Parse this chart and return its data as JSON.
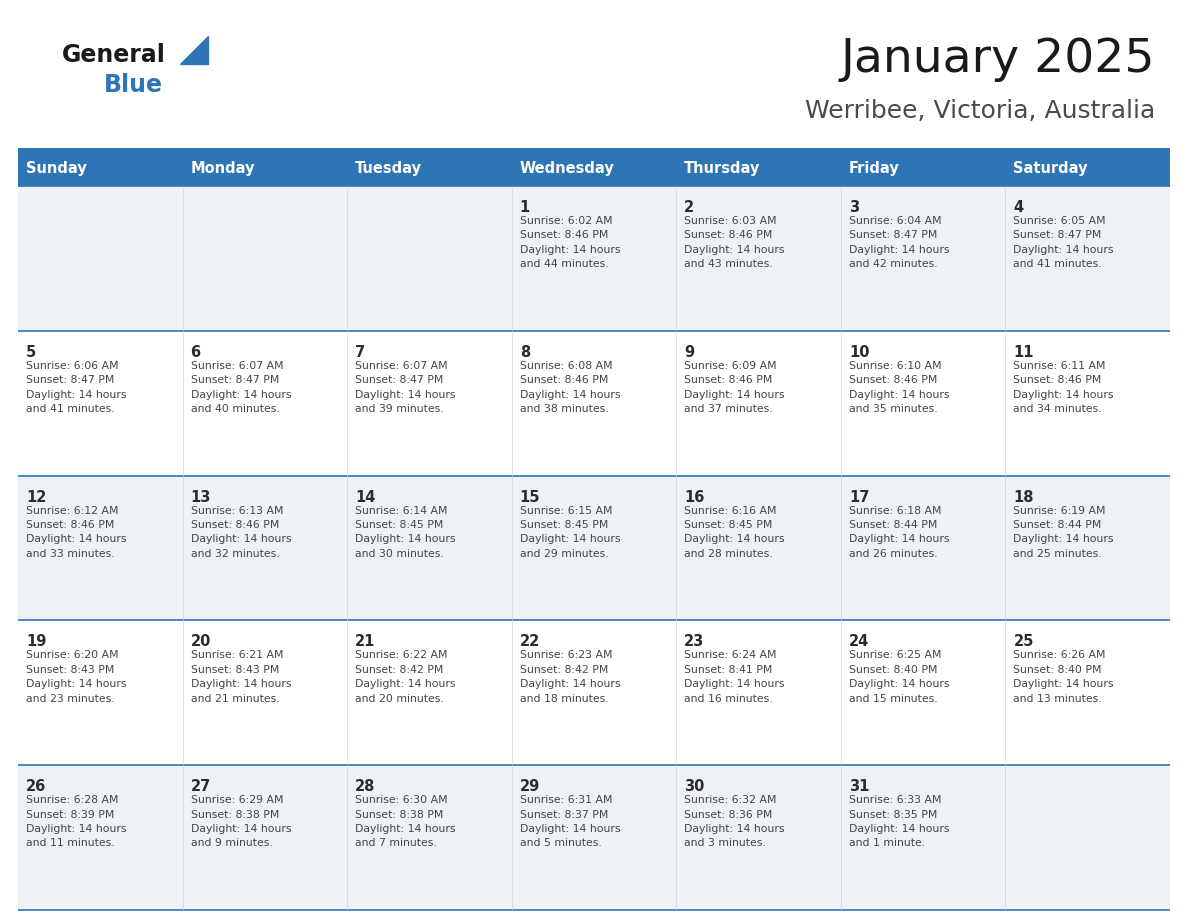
{
  "title": "January 2025",
  "subtitle": "Werribee, Victoria, Australia",
  "header_bg": "#2E75B6",
  "header_text_color": "#FFFFFF",
  "header_font_size": 10.5,
  "day_headers": [
    "Sunday",
    "Monday",
    "Tuesday",
    "Wednesday",
    "Thursday",
    "Friday",
    "Saturday"
  ],
  "title_font_size": 34,
  "subtitle_font_size": 18,
  "cell_bg_light": "#EEF2F7",
  "cell_bg_white": "#FFFFFF",
  "row_line_color": "#2E75B6",
  "text_color": "#2B2B2B",
  "info_color": "#444444",
  "logo_general_color": "#1A1A1A",
  "logo_blue_color": "#2E75B6",
  "weeks": [
    [
      {
        "day": null,
        "info": null
      },
      {
        "day": null,
        "info": null
      },
      {
        "day": null,
        "info": null
      },
      {
        "day": "1",
        "info": "Sunrise: 6:02 AM\nSunset: 8:46 PM\nDaylight: 14 hours\nand 44 minutes."
      },
      {
        "day": "2",
        "info": "Sunrise: 6:03 AM\nSunset: 8:46 PM\nDaylight: 14 hours\nand 43 minutes."
      },
      {
        "day": "3",
        "info": "Sunrise: 6:04 AM\nSunset: 8:47 PM\nDaylight: 14 hours\nand 42 minutes."
      },
      {
        "day": "4",
        "info": "Sunrise: 6:05 AM\nSunset: 8:47 PM\nDaylight: 14 hours\nand 41 minutes."
      }
    ],
    [
      {
        "day": "5",
        "info": "Sunrise: 6:06 AM\nSunset: 8:47 PM\nDaylight: 14 hours\nand 41 minutes."
      },
      {
        "day": "6",
        "info": "Sunrise: 6:07 AM\nSunset: 8:47 PM\nDaylight: 14 hours\nand 40 minutes."
      },
      {
        "day": "7",
        "info": "Sunrise: 6:07 AM\nSunset: 8:47 PM\nDaylight: 14 hours\nand 39 minutes."
      },
      {
        "day": "8",
        "info": "Sunrise: 6:08 AM\nSunset: 8:46 PM\nDaylight: 14 hours\nand 38 minutes."
      },
      {
        "day": "9",
        "info": "Sunrise: 6:09 AM\nSunset: 8:46 PM\nDaylight: 14 hours\nand 37 minutes."
      },
      {
        "day": "10",
        "info": "Sunrise: 6:10 AM\nSunset: 8:46 PM\nDaylight: 14 hours\nand 35 minutes."
      },
      {
        "day": "11",
        "info": "Sunrise: 6:11 AM\nSunset: 8:46 PM\nDaylight: 14 hours\nand 34 minutes."
      }
    ],
    [
      {
        "day": "12",
        "info": "Sunrise: 6:12 AM\nSunset: 8:46 PM\nDaylight: 14 hours\nand 33 minutes."
      },
      {
        "day": "13",
        "info": "Sunrise: 6:13 AM\nSunset: 8:46 PM\nDaylight: 14 hours\nand 32 minutes."
      },
      {
        "day": "14",
        "info": "Sunrise: 6:14 AM\nSunset: 8:45 PM\nDaylight: 14 hours\nand 30 minutes."
      },
      {
        "day": "15",
        "info": "Sunrise: 6:15 AM\nSunset: 8:45 PM\nDaylight: 14 hours\nand 29 minutes."
      },
      {
        "day": "16",
        "info": "Sunrise: 6:16 AM\nSunset: 8:45 PM\nDaylight: 14 hours\nand 28 minutes."
      },
      {
        "day": "17",
        "info": "Sunrise: 6:18 AM\nSunset: 8:44 PM\nDaylight: 14 hours\nand 26 minutes."
      },
      {
        "day": "18",
        "info": "Sunrise: 6:19 AM\nSunset: 8:44 PM\nDaylight: 14 hours\nand 25 minutes."
      }
    ],
    [
      {
        "day": "19",
        "info": "Sunrise: 6:20 AM\nSunset: 8:43 PM\nDaylight: 14 hours\nand 23 minutes."
      },
      {
        "day": "20",
        "info": "Sunrise: 6:21 AM\nSunset: 8:43 PM\nDaylight: 14 hours\nand 21 minutes."
      },
      {
        "day": "21",
        "info": "Sunrise: 6:22 AM\nSunset: 8:42 PM\nDaylight: 14 hours\nand 20 minutes."
      },
      {
        "day": "22",
        "info": "Sunrise: 6:23 AM\nSunset: 8:42 PM\nDaylight: 14 hours\nand 18 minutes."
      },
      {
        "day": "23",
        "info": "Sunrise: 6:24 AM\nSunset: 8:41 PM\nDaylight: 14 hours\nand 16 minutes."
      },
      {
        "day": "24",
        "info": "Sunrise: 6:25 AM\nSunset: 8:40 PM\nDaylight: 14 hours\nand 15 minutes."
      },
      {
        "day": "25",
        "info": "Sunrise: 6:26 AM\nSunset: 8:40 PM\nDaylight: 14 hours\nand 13 minutes."
      }
    ],
    [
      {
        "day": "26",
        "info": "Sunrise: 6:28 AM\nSunset: 8:39 PM\nDaylight: 14 hours\nand 11 minutes."
      },
      {
        "day": "27",
        "info": "Sunrise: 6:29 AM\nSunset: 8:38 PM\nDaylight: 14 hours\nand 9 minutes."
      },
      {
        "day": "28",
        "info": "Sunrise: 6:30 AM\nSunset: 8:38 PM\nDaylight: 14 hours\nand 7 minutes."
      },
      {
        "day": "29",
        "info": "Sunrise: 6:31 AM\nSunset: 8:37 PM\nDaylight: 14 hours\nand 5 minutes."
      },
      {
        "day": "30",
        "info": "Sunrise: 6:32 AM\nSunset: 8:36 PM\nDaylight: 14 hours\nand 3 minutes."
      },
      {
        "day": "31",
        "info": "Sunrise: 6:33 AM\nSunset: 8:35 PM\nDaylight: 14 hours\nand 1 minute."
      },
      {
        "day": null,
        "info": null
      }
    ]
  ]
}
